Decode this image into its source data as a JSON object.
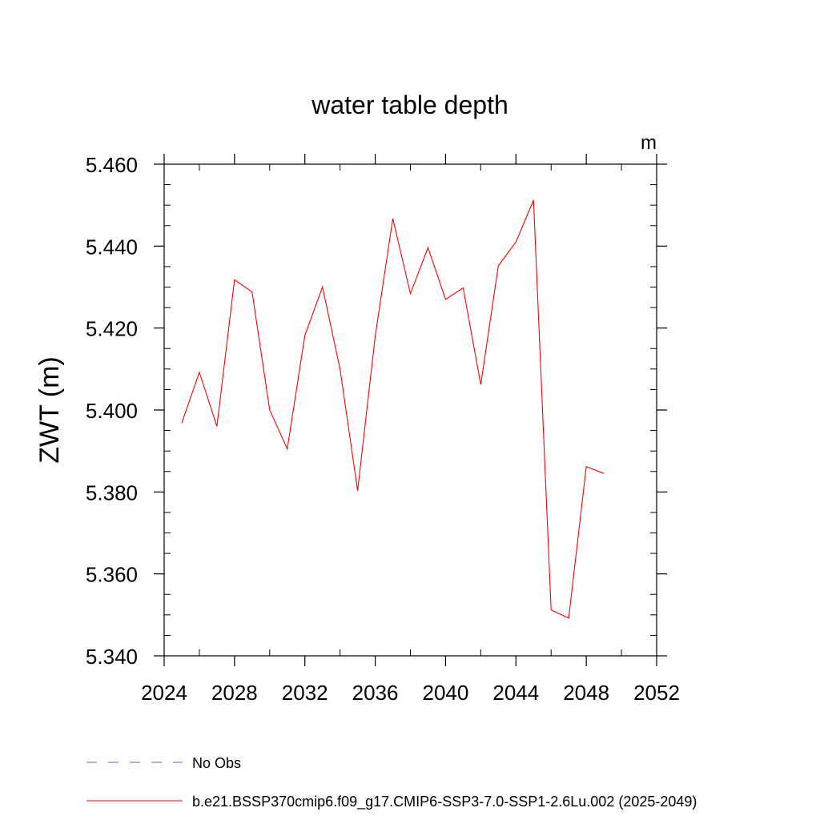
{
  "chart_data": {
    "type": "line",
    "title": "water table depth",
    "units_label": "m",
    "ylabel": "ZWT  (m)",
    "xlabel": "",
    "xlim": [
      2024,
      2052
    ],
    "ylim": [
      5.34,
      5.46
    ],
    "x_ticks": [
      2024,
      2028,
      2032,
      2036,
      2040,
      2044,
      2048,
      2052
    ],
    "x_tick_labels": [
      "2024",
      "2028",
      "2032",
      "2036",
      "2040",
      "2044",
      "2048",
      "2052"
    ],
    "y_ticks": [
      5.34,
      5.36,
      5.38,
      5.4,
      5.42,
      5.44,
      5.46
    ],
    "y_tick_labels": [
      "5.340",
      "5.360",
      "5.380",
      "5.400",
      "5.420",
      "5.440",
      "5.460"
    ],
    "grid": false,
    "legend_position": "bottom",
    "series": [
      {
        "name": "b.e21.BSSP370cmip6.f09_g17.CMIP6-SSP3-7.0-SSP1-2.6Lu.002 (2025-2049)",
        "color": "#ff0000",
        "style": "solid",
        "x": [
          2025,
          2026,
          2027,
          2028,
          2029,
          2030,
          2031,
          2032,
          2033,
          2034,
          2035,
          2036,
          2037,
          2038,
          2039,
          2040,
          2041,
          2042,
          2043,
          2044,
          2045,
          2046,
          2047,
          2048,
          2049
        ],
        "y": [
          5.3968,
          5.4092,
          5.396,
          5.4318,
          5.4288,
          5.4,
          5.3905,
          5.4182,
          5.43,
          5.41,
          5.3803,
          5.418,
          5.4467,
          5.4284,
          5.4396,
          5.427,
          5.4298,
          5.4062,
          5.4352,
          5.441,
          5.4512,
          5.3512,
          5.3492,
          5.3862,
          5.3845
        ]
      }
    ],
    "legend": [
      {
        "label": "No Obs",
        "color": "#6a5acd",
        "style": "dashed"
      },
      {
        "label": "b.e21.BSSP370cmip6.f09_g17.CMIP6-SSP3-7.0-SSP1-2.6Lu.002 (2025-2049)",
        "color": "#ff0000",
        "style": "solid"
      }
    ]
  }
}
